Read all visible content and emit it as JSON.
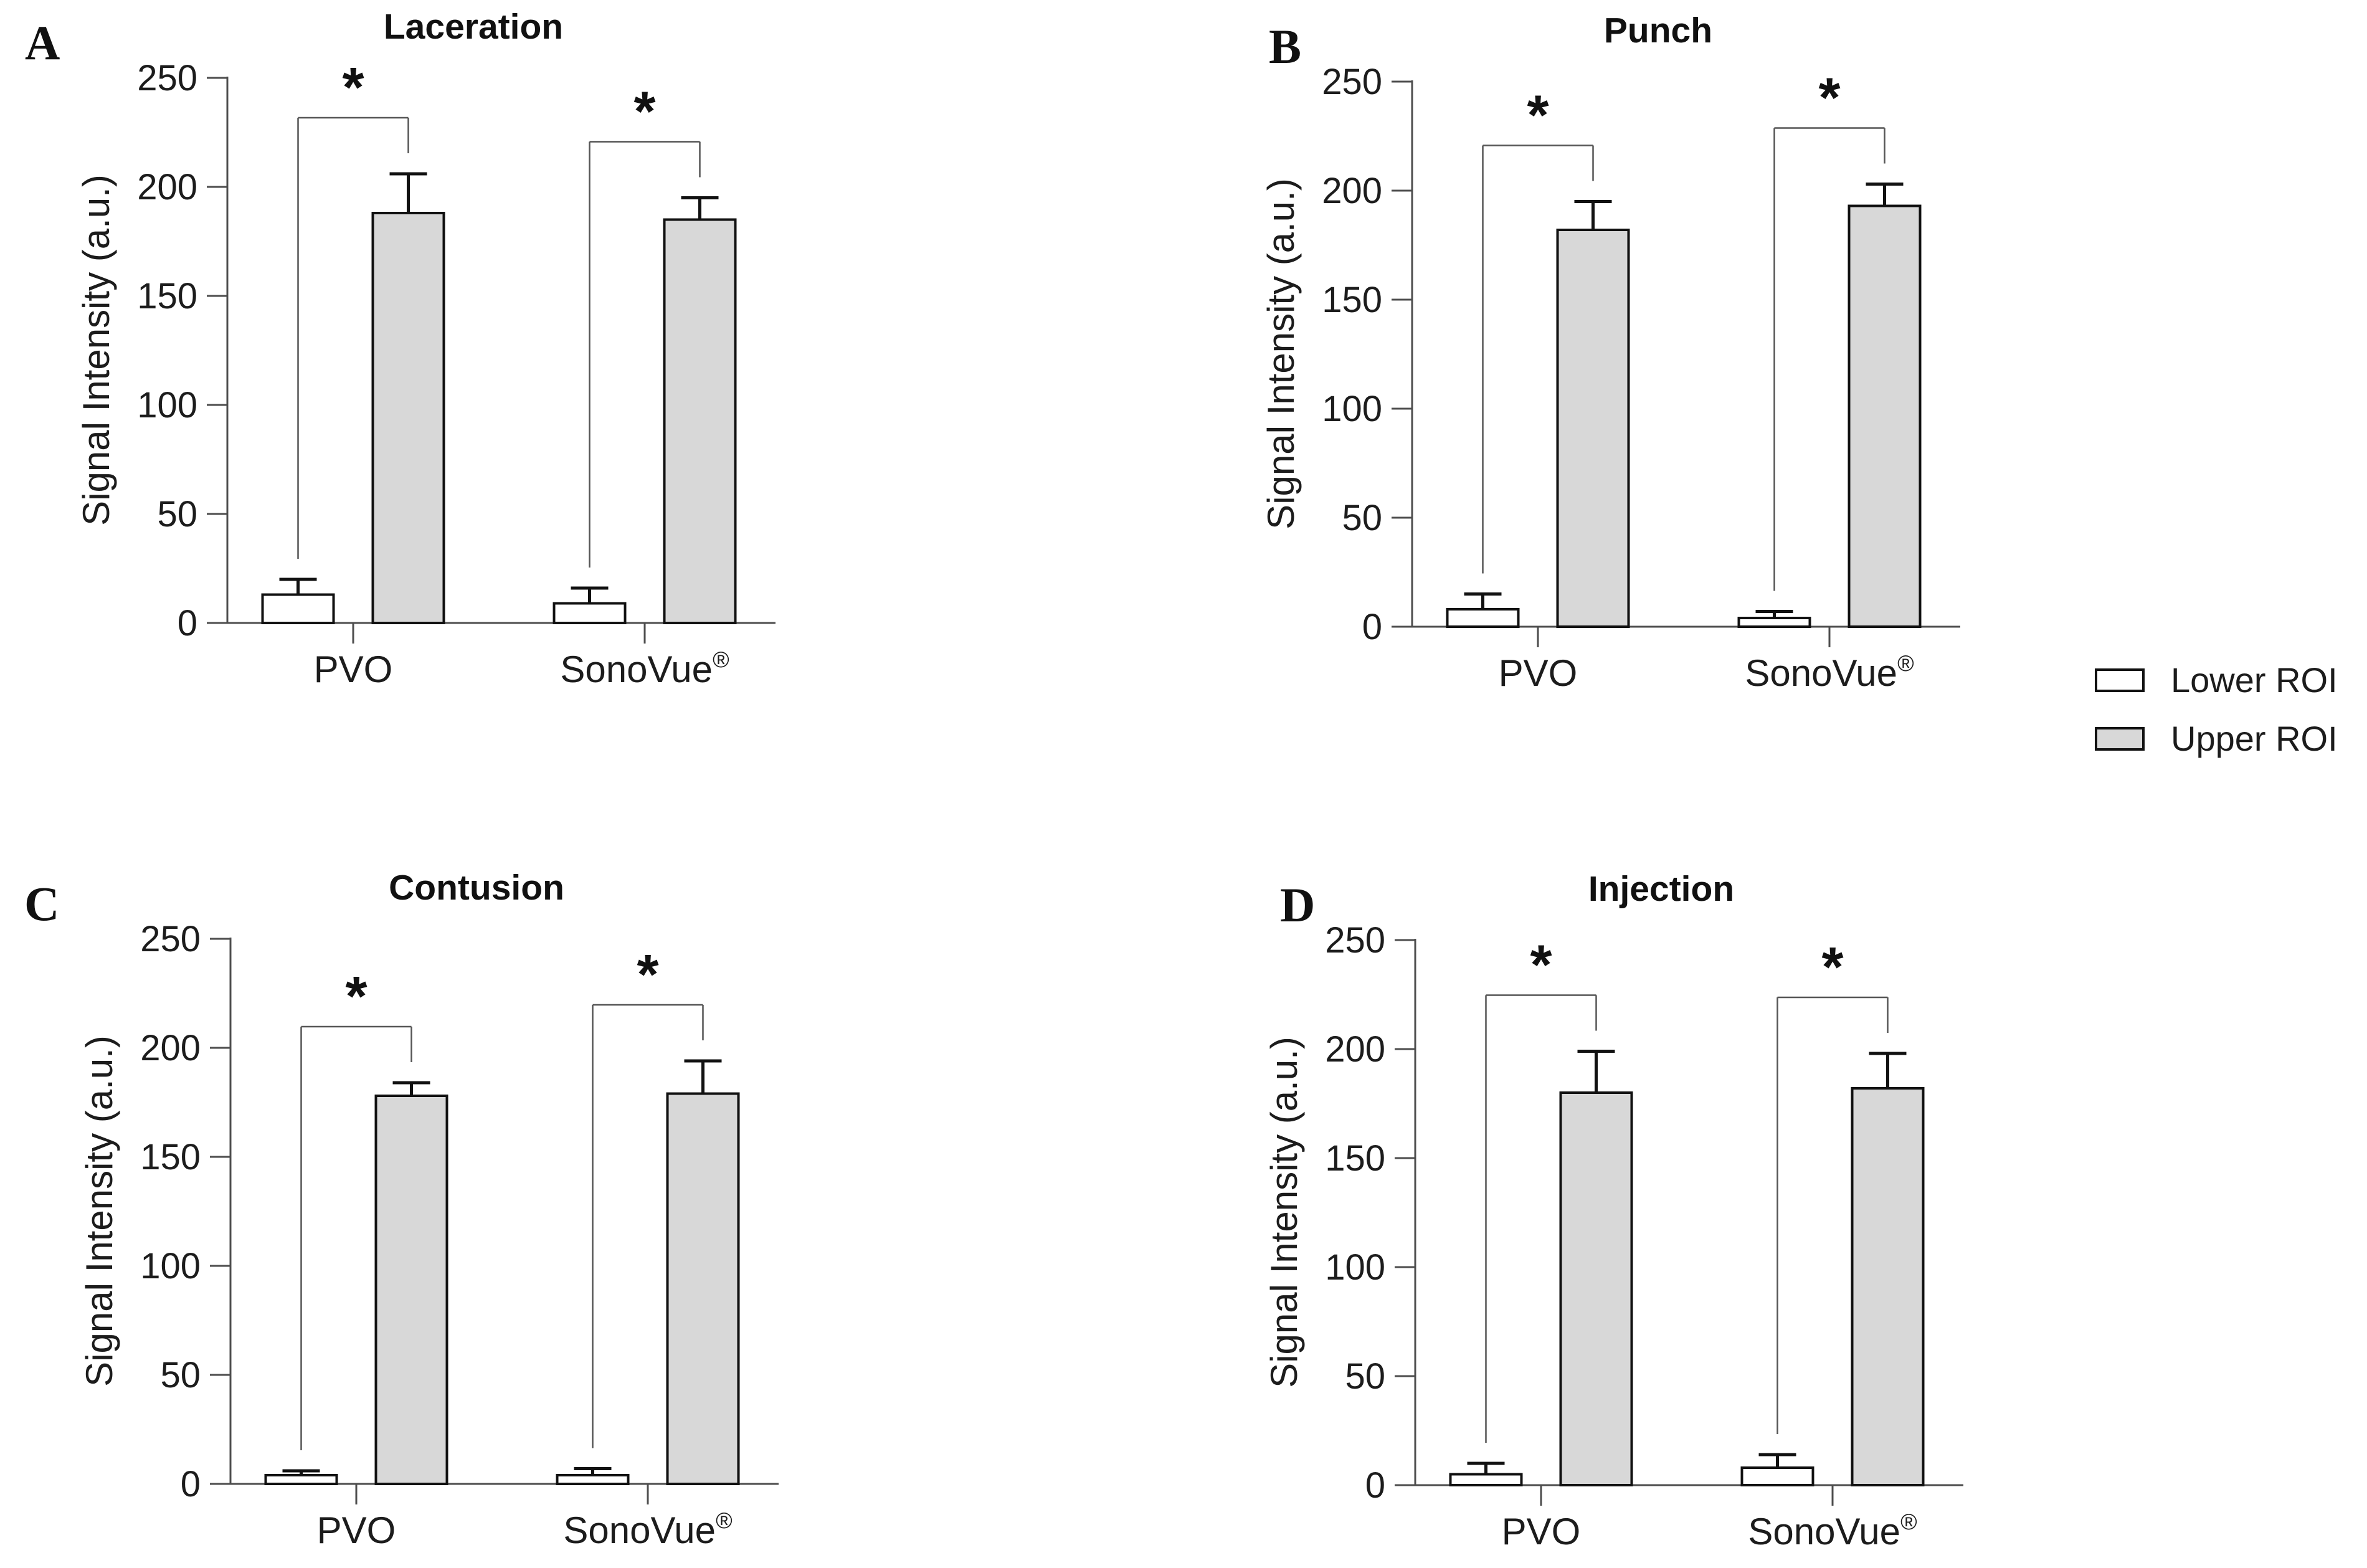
{
  "figure": {
    "background": "#ffffff"
  },
  "style": {
    "bar_stroke": "#111111",
    "axis_color": "#4d4d4d",
    "bracket_color": "#555555",
    "error_bar_color": "#111111",
    "lower_roi_fill": "#ffffff",
    "upper_roi_fill": "#d8d8d8"
  },
  "chart_data": [
    {
      "type": "bar",
      "panel": "A",
      "title": "Laceration",
      "categories": [
        "PVO",
        "SonoVue®"
      ],
      "series": [
        {
          "name": "Lower ROI",
          "fill": "#ffffff",
          "values": [
            13,
            9
          ],
          "errors": [
            7,
            7
          ]
        },
        {
          "name": "Upper ROI",
          "fill": "#d8d8d8",
          "values": [
            188,
            185
          ],
          "errors": [
            18,
            10
          ]
        }
      ],
      "significance": [
        "*",
        "*"
      ],
      "ylabel": "Signal Intensity (a.u.)",
      "ylim": [
        0,
        250
      ],
      "yticks": [
        0,
        50,
        100,
        150,
        200,
        250
      ],
      "grid": false
    },
    {
      "type": "bar",
      "panel": "B",
      "title": "Punch",
      "categories": [
        "PVO",
        "SonoVue®"
      ],
      "series": [
        {
          "name": "Lower ROI",
          "fill": "#ffffff",
          "values": [
            8,
            4
          ],
          "errors": [
            7,
            3
          ]
        },
        {
          "name": "Upper ROI",
          "fill": "#d8d8d8",
          "values": [
            182,
            193
          ],
          "errors": [
            13,
            10
          ]
        }
      ],
      "significance": [
        "*",
        "*"
      ],
      "ylabel": "Signal Intensity (a.u.)",
      "ylim": [
        0,
        250
      ],
      "yticks": [
        0,
        50,
        100,
        150,
        200,
        250
      ],
      "grid": false
    },
    {
      "type": "bar",
      "panel": "C",
      "title": "Contusion",
      "categories": [
        "PVO",
        "SonoVue®"
      ],
      "series": [
        {
          "name": "Lower ROI",
          "fill": "#ffffff",
          "values": [
            4,
            4
          ],
          "errors": [
            2,
            3
          ]
        },
        {
          "name": "Upper ROI",
          "fill": "#d8d8d8",
          "values": [
            178,
            179
          ],
          "errors": [
            6,
            15
          ]
        }
      ],
      "significance": [
        "*",
        "*"
      ],
      "ylabel": "Signal Intensity (a.u.)",
      "ylim": [
        0,
        250
      ],
      "yticks": [
        0,
        50,
        100,
        150,
        200,
        250
      ],
      "grid": false
    },
    {
      "type": "bar",
      "panel": "D",
      "title": "Injection",
      "categories": [
        "PVO",
        "SonoVue®"
      ],
      "series": [
        {
          "name": "Lower ROI",
          "fill": "#ffffff",
          "values": [
            5,
            8
          ],
          "errors": [
            5,
            6
          ]
        },
        {
          "name": "Upper ROI",
          "fill": "#d8d8d8",
          "values": [
            180,
            182
          ],
          "errors": [
            19,
            16
          ]
        }
      ],
      "significance": [
        "*",
        "*"
      ],
      "ylabel": "Signal Intensity (a.u.)",
      "ylim": [
        0,
        250
      ],
      "yticks": [
        0,
        50,
        100,
        150,
        200,
        250
      ],
      "grid": false
    }
  ],
  "legend": {
    "position": "right",
    "items": [
      {
        "label": "Lower ROI",
        "fill": "#ffffff"
      },
      {
        "label": "Upper ROI",
        "fill": "#d8d8d8"
      }
    ]
  }
}
